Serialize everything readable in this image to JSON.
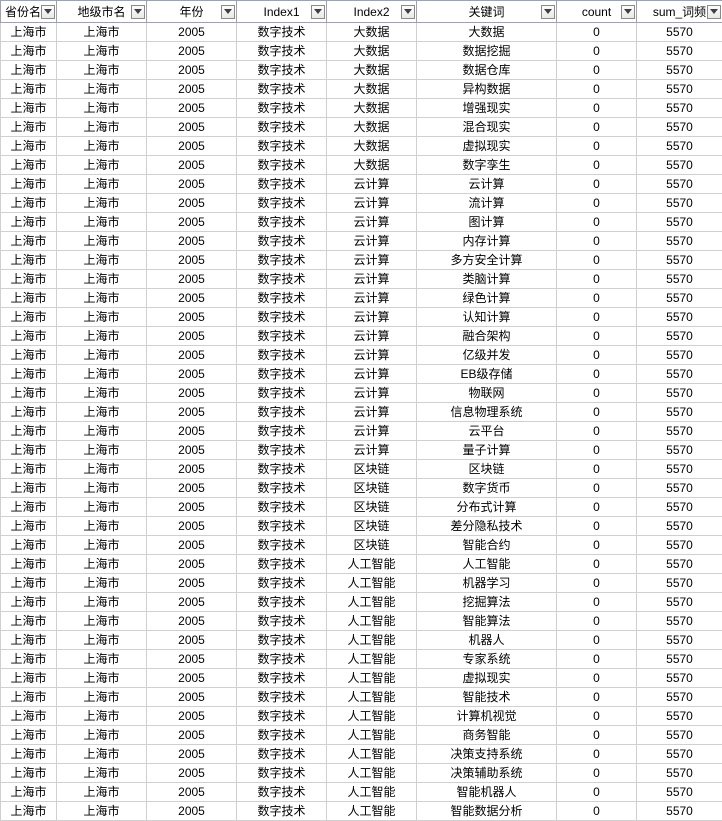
{
  "columns": [
    {
      "key": "province",
      "label": "省份名称",
      "class": "col-prov"
    },
    {
      "key": "city",
      "label": "地级市名",
      "class": "col-city"
    },
    {
      "key": "year",
      "label": "年份",
      "class": "col-year"
    },
    {
      "key": "index1",
      "label": "Index1",
      "class": "col-idx1"
    },
    {
      "key": "index2",
      "label": "Index2",
      "class": "col-idx2"
    },
    {
      "key": "keyword",
      "label": "关键词",
      "class": "col-kw"
    },
    {
      "key": "count",
      "label": "count",
      "class": "col-count"
    },
    {
      "key": "sum",
      "label": "sum_词频",
      "class": "col-sum"
    }
  ],
  "defaults": {
    "province": "上海市",
    "city": "上海市",
    "year": "2005",
    "index1": "数字技术",
    "count": "0",
    "sum": "5570"
  },
  "rows": [
    {
      "index2": "大数据",
      "keyword": "大数据"
    },
    {
      "index2": "大数据",
      "keyword": "数据挖掘"
    },
    {
      "index2": "大数据",
      "keyword": "数据仓库"
    },
    {
      "index2": "大数据",
      "keyword": "异构数据"
    },
    {
      "index2": "大数据",
      "keyword": "增强现实"
    },
    {
      "index2": "大数据",
      "keyword": "混合现实"
    },
    {
      "index2": "大数据",
      "keyword": "虚拟现实"
    },
    {
      "index2": "大数据",
      "keyword": "数字孪生"
    },
    {
      "index2": "云计算",
      "keyword": "云计算"
    },
    {
      "index2": "云计算",
      "keyword": "流计算"
    },
    {
      "index2": "云计算",
      "keyword": "图计算"
    },
    {
      "index2": "云计算",
      "keyword": "内存计算"
    },
    {
      "index2": "云计算",
      "keyword": "多方安全计算"
    },
    {
      "index2": "云计算",
      "keyword": "类脑计算"
    },
    {
      "index2": "云计算",
      "keyword": "绿色计算"
    },
    {
      "index2": "云计算",
      "keyword": "认知计算"
    },
    {
      "index2": "云计算",
      "keyword": "融合架构"
    },
    {
      "index2": "云计算",
      "keyword": "亿级并发"
    },
    {
      "index2": "云计算",
      "keyword": "EB级存储"
    },
    {
      "index2": "云计算",
      "keyword": "物联网"
    },
    {
      "index2": "云计算",
      "keyword": "信息物理系统"
    },
    {
      "index2": "云计算",
      "keyword": "云平台"
    },
    {
      "index2": "云计算",
      "keyword": "量子计算"
    },
    {
      "index2": "区块链",
      "keyword": "区块链"
    },
    {
      "index2": "区块链",
      "keyword": "数字货币"
    },
    {
      "index2": "区块链",
      "keyword": "分布式计算"
    },
    {
      "index2": "区块链",
      "keyword": "差分隐私技术"
    },
    {
      "index2": "区块链",
      "keyword": "智能合约"
    },
    {
      "index2": "人工智能",
      "keyword": "人工智能"
    },
    {
      "index2": "人工智能",
      "keyword": "机器学习"
    },
    {
      "index2": "人工智能",
      "keyword": "挖掘算法"
    },
    {
      "index2": "人工智能",
      "keyword": "智能算法"
    },
    {
      "index2": "人工智能",
      "keyword": "机器人"
    },
    {
      "index2": "人工智能",
      "keyword": "专家系统"
    },
    {
      "index2": "人工智能",
      "keyword": "虚拟现实"
    },
    {
      "index2": "人工智能",
      "keyword": "智能技术"
    },
    {
      "index2": "人工智能",
      "keyword": "计算机视觉"
    },
    {
      "index2": "人工智能",
      "keyword": "商务智能"
    },
    {
      "index2": "人工智能",
      "keyword": "决策支持系统"
    },
    {
      "index2": "人工智能",
      "keyword": "决策辅助系统"
    },
    {
      "index2": "人工智能",
      "keyword": "智能机器人"
    },
    {
      "index2": "人工智能",
      "keyword": "智能数据分析"
    }
  ]
}
